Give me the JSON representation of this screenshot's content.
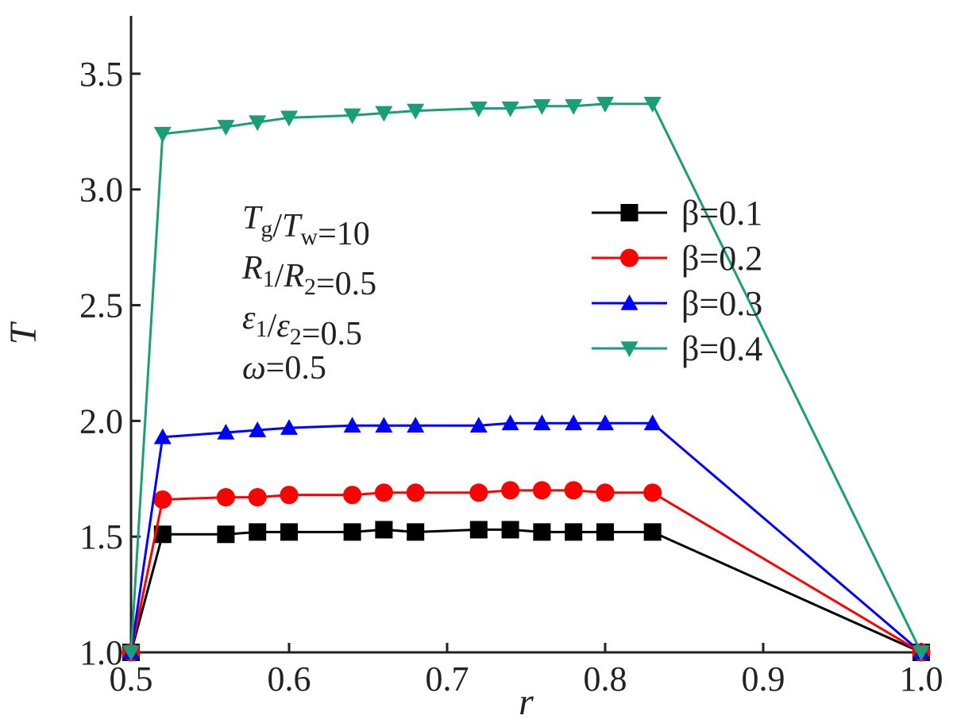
{
  "chart_data": {
    "type": "line",
    "title": "",
    "xlabel": "r",
    "ylabel": "T",
    "xlim": [
      0.5,
      1.0
    ],
    "ylim": [
      1.0,
      3.75
    ],
    "xticks": [
      "0.5",
      "0.6",
      "0.7",
      "0.8",
      "0.9",
      "1.0"
    ],
    "yticks": [
      "1.0",
      "1.5",
      "2.0",
      "2.5",
      "3.0",
      "3.5"
    ],
    "grid": false,
    "legend_position": "top-right",
    "annotations": [
      {
        "lhs": "T_g/T_w",
        "value": "10"
      },
      {
        "lhs": "R_1/R_2",
        "value": "0.5"
      },
      {
        "lhs": "ε_1/ε_2",
        "value": "0.5"
      },
      {
        "lhs": "ω",
        "value": "0.5"
      }
    ],
    "x": [
      0.5,
      0.52,
      0.56,
      0.58,
      0.6,
      0.64,
      0.66,
      0.68,
      0.72,
      0.74,
      0.76,
      0.78,
      0.8,
      0.83,
      1.0
    ],
    "series": [
      {
        "name": "β=0.1",
        "marker": "square",
        "color": "#000000",
        "values": [
          1.0,
          1.51,
          1.51,
          1.52,
          1.52,
          1.52,
          1.53,
          1.52,
          1.53,
          1.53,
          1.52,
          1.52,
          1.52,
          1.52,
          1.0
        ]
      },
      {
        "name": "β=0.2",
        "marker": "circle",
        "color": "#ff0000",
        "values": [
          1.0,
          1.66,
          1.67,
          1.67,
          1.68,
          1.68,
          1.69,
          1.69,
          1.69,
          1.7,
          1.7,
          1.7,
          1.69,
          1.69,
          1.0
        ]
      },
      {
        "name": "β=0.3",
        "marker": "triangle-up",
        "color": "#0000ff",
        "values": [
          1.0,
          1.93,
          1.95,
          1.96,
          1.97,
          1.98,
          1.98,
          1.98,
          1.98,
          1.99,
          1.99,
          1.99,
          1.99,
          1.99,
          1.0
        ]
      },
      {
        "name": "β=0.4",
        "marker": "triangle-down",
        "color": "#1a9e77",
        "values": [
          1.0,
          3.24,
          3.27,
          3.29,
          3.31,
          3.32,
          3.33,
          3.34,
          3.35,
          3.35,
          3.36,
          3.36,
          3.37,
          3.37,
          1.0
        ]
      }
    ]
  }
}
